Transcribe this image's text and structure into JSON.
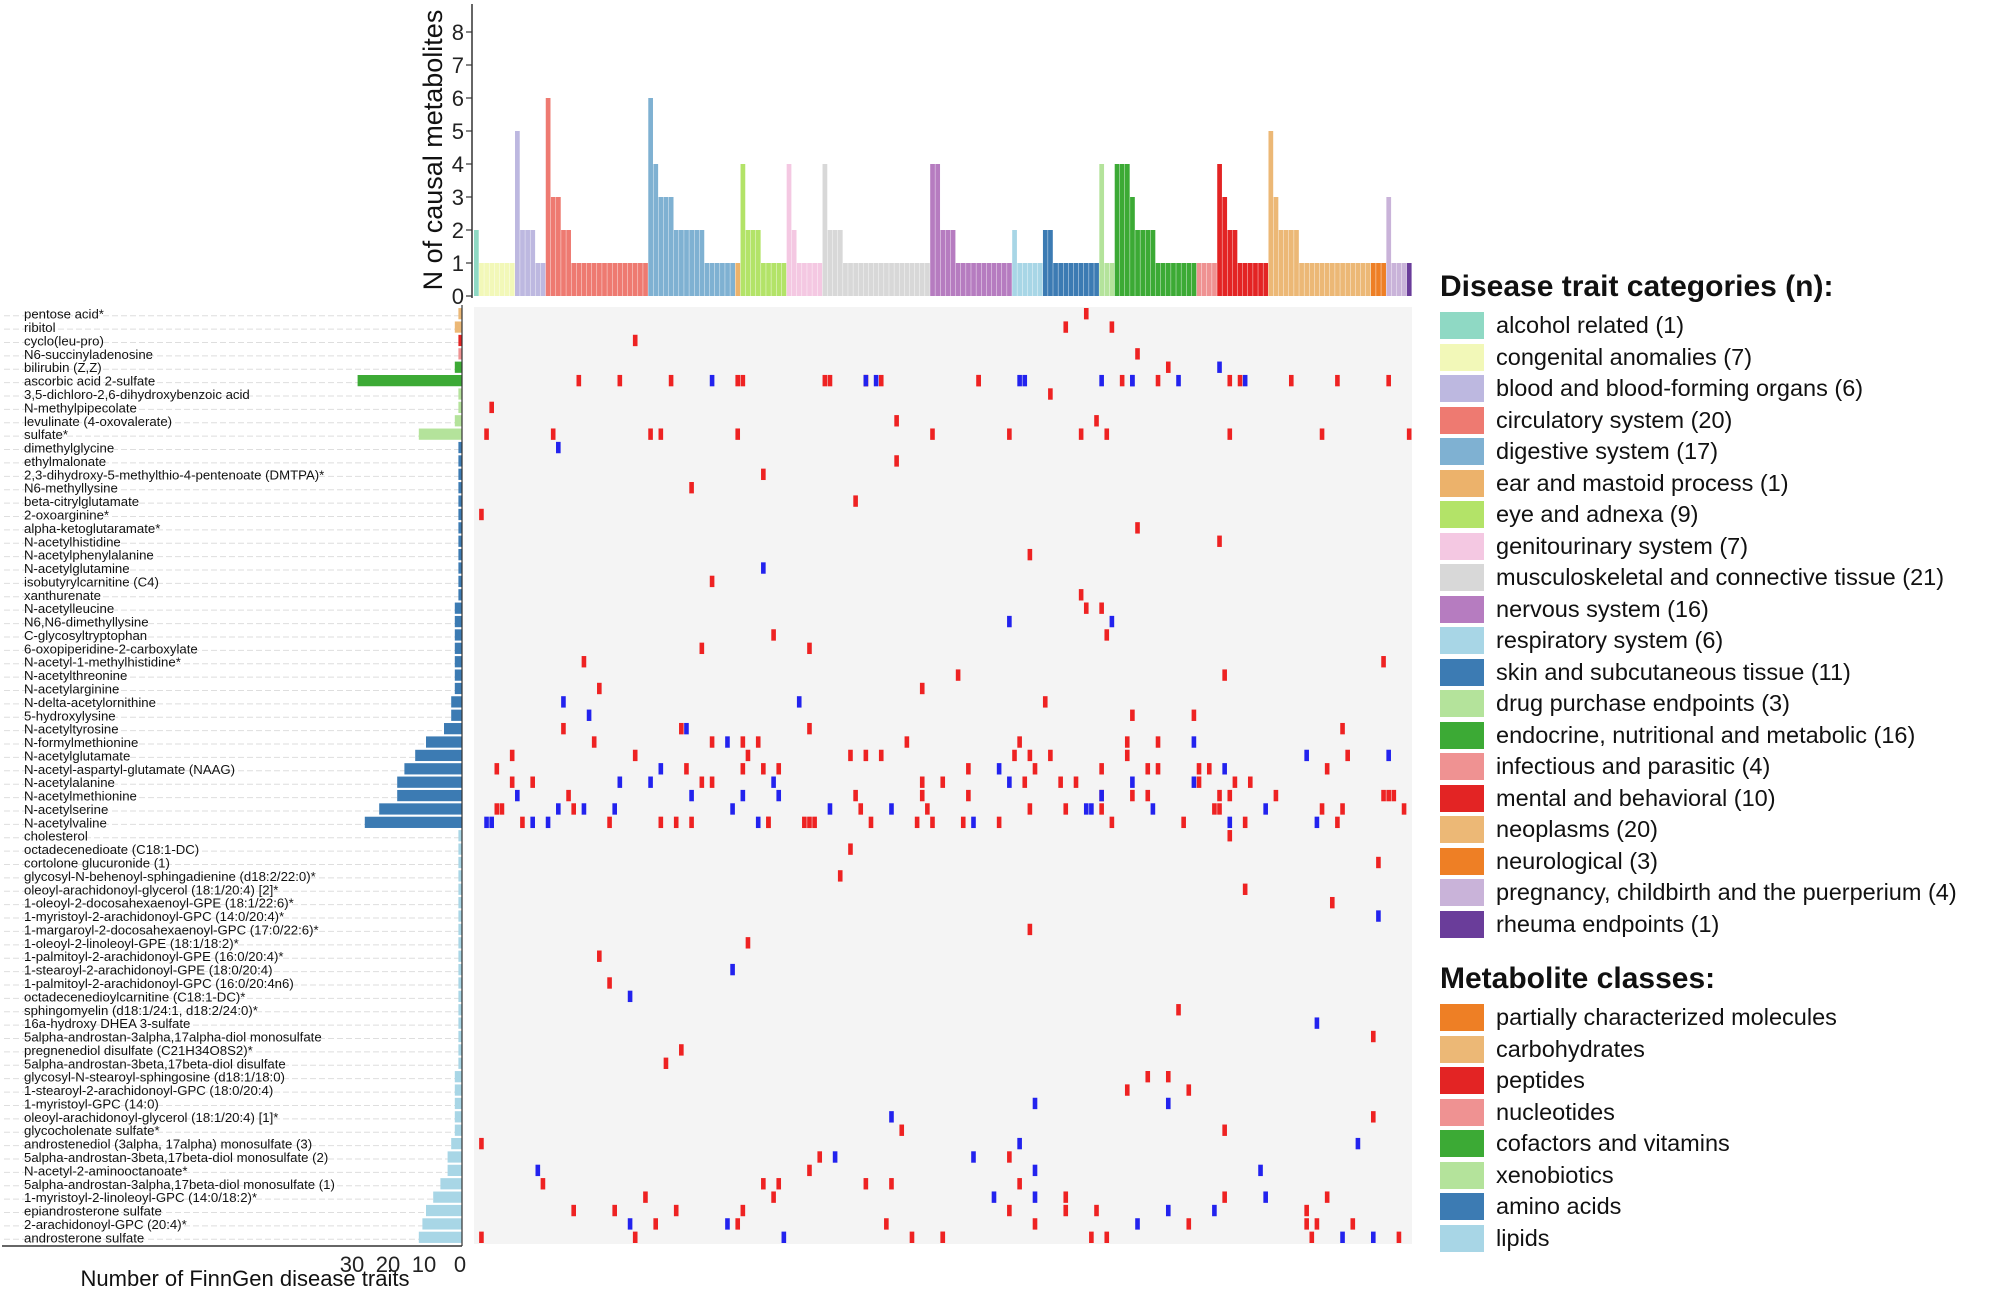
{
  "chart_data": [
    {
      "type": "bar",
      "title": "",
      "ylabel": "N of causal metabolites",
      "ylim": [
        0,
        8
      ],
      "yticks": [
        0,
        1,
        2,
        3,
        4,
        5,
        6,
        7,
        8
      ],
      "note": "one bar per FinnGen disease trait, coloured by disease trait category",
      "categories_by_group": [
        {
          "category": "alcohol related",
          "values": [
            2
          ]
        },
        {
          "category": "congenital anomalies",
          "values": [
            1,
            1,
            1,
            1,
            1,
            1,
            1
          ]
        },
        {
          "category": "blood and blood-forming organs",
          "values": [
            5,
            2,
            2,
            2,
            1,
            1
          ]
        },
        {
          "category": "circulatory system",
          "values": [
            6,
            3,
            3,
            2,
            2,
            1,
            1,
            1,
            1,
            1,
            1,
            1,
            1,
            1,
            1,
            1,
            1,
            1,
            1,
            1
          ]
        },
        {
          "category": "digestive system",
          "values": [
            6,
            4,
            3,
            3,
            3,
            2,
            2,
            2,
            2,
            2,
            2,
            1,
            1,
            1,
            1,
            1,
            1
          ]
        },
        {
          "category": "ear and mastoid process",
          "values": [
            1
          ]
        },
        {
          "category": "eye and adnexa",
          "values": [
            4,
            2,
            2,
            2,
            1,
            1,
            1,
            1,
            1
          ]
        },
        {
          "category": "genitourinary system",
          "values": [
            4,
            2,
            1,
            1,
            1,
            1,
            1
          ]
        },
        {
          "category": "musculoskeletal and connective tissue",
          "values": [
            4,
            2,
            2,
            2,
            1,
            1,
            1,
            1,
            1,
            1,
            1,
            1,
            1,
            1,
            1,
            1,
            1,
            1,
            1,
            1,
            1
          ]
        },
        {
          "category": "nervous system",
          "values": [
            4,
            4,
            2,
            2,
            2,
            1,
            1,
            1,
            1,
            1,
            1,
            1,
            1,
            1,
            1,
            1
          ]
        },
        {
          "category": "respiratory system",
          "values": [
            2,
            1,
            1,
            1,
            1,
            1
          ]
        },
        {
          "category": "skin and subcutaneous tissue",
          "values": [
            2,
            2,
            1,
            1,
            1,
            1,
            1,
            1,
            1,
            1,
            1
          ]
        },
        {
          "category": "drug purchase endpoints",
          "values": [
            4,
            1,
            1
          ]
        },
        {
          "category": "endocrine, nutritional and metabolic",
          "values": [
            4,
            4,
            4,
            3,
            2,
            2,
            2,
            2,
            1,
            1,
            1,
            1,
            1,
            1,
            1,
            1
          ]
        },
        {
          "category": "infectious and parasitic",
          "values": [
            1,
            1,
            1,
            1
          ]
        },
        {
          "category": "mental and behavioral",
          "values": [
            4,
            3,
            2,
            2,
            1,
            1,
            1,
            1,
            1,
            1
          ]
        },
        {
          "category": "neoplasms",
          "values": [
            5,
            3,
            2,
            2,
            2,
            2,
            1,
            1,
            1,
            1,
            1,
            1,
            1,
            1,
            1,
            1,
            1,
            1,
            1,
            1
          ]
        },
        {
          "category": "neurological",
          "values": [
            1,
            1,
            1
          ]
        },
        {
          "category": "pregnancy, childbirth and the puerperium",
          "values": [
            3,
            1,
            1,
            1
          ]
        },
        {
          "category": "rheuma endpoints",
          "values": [
            1
          ]
        }
      ]
    },
    {
      "type": "bar",
      "orientation": "horizontal",
      "xlabel": "Number of FinnGen disease traits",
      "xticks": [
        30,
        20,
        10,
        0
      ],
      "xlim": [
        0,
        33
      ],
      "metabolites": [
        {
          "name": "pentose acid*",
          "value": 1,
          "class": "carbohydrates"
        },
        {
          "name": "ribitol",
          "value": 2,
          "class": "carbohydrates"
        },
        {
          "name": "cyclo(leu-pro)",
          "value": 1,
          "class": "peptides"
        },
        {
          "name": "N6-succinyladenosine",
          "value": 1,
          "class": "nucleotides"
        },
        {
          "name": "bilirubin (Z,Z)",
          "value": 2,
          "class": "cofactors and vitamins"
        },
        {
          "name": "ascorbic acid 2-sulfate",
          "value": 29,
          "class": "cofactors and vitamins"
        },
        {
          "name": "3,5-dichloro-2,6-dihydroxybenzoic acid",
          "value": 1,
          "class": "xenobiotics"
        },
        {
          "name": "N-methylpipecolate",
          "value": 1,
          "class": "xenobiotics"
        },
        {
          "name": "levulinate (4-oxovalerate)",
          "value": 2,
          "class": "xenobiotics"
        },
        {
          "name": "sulfate*",
          "value": 12,
          "class": "xenobiotics"
        },
        {
          "name": "dimethylglycine",
          "value": 1,
          "class": "amino acids"
        },
        {
          "name": "ethylmalonate",
          "value": 1,
          "class": "amino acids"
        },
        {
          "name": "2,3-dihydroxy-5-methylthio-4-pentenoate (DMTPA)*",
          "value": 1,
          "class": "amino acids"
        },
        {
          "name": "N6-methyllysine",
          "value": 1,
          "class": "amino acids"
        },
        {
          "name": "beta-citrylglutamate",
          "value": 1,
          "class": "amino acids"
        },
        {
          "name": "2-oxoarginine*",
          "value": 1,
          "class": "amino acids"
        },
        {
          "name": "alpha-ketoglutaramate*",
          "value": 1,
          "class": "amino acids"
        },
        {
          "name": "N-acetylhistidine",
          "value": 1,
          "class": "amino acids"
        },
        {
          "name": "N-acetylphenylalanine",
          "value": 1,
          "class": "amino acids"
        },
        {
          "name": "N-acetylglutamine",
          "value": 1,
          "class": "amino acids"
        },
        {
          "name": "isobutyrylcarnitine (C4)",
          "value": 1,
          "class": "amino acids"
        },
        {
          "name": "xanthurenate",
          "value": 1,
          "class": "amino acids"
        },
        {
          "name": "N-acetylleucine",
          "value": 2,
          "class": "amino acids"
        },
        {
          "name": "N6,N6-dimethyllysine",
          "value": 2,
          "class": "amino acids"
        },
        {
          "name": "C-glycosyltryptophan",
          "value": 2,
          "class": "amino acids"
        },
        {
          "name": "6-oxopiperidine-2-carboxylate",
          "value": 2,
          "class": "amino acids"
        },
        {
          "name": "N-acetyl-1-methylhistidine*",
          "value": 2,
          "class": "amino acids"
        },
        {
          "name": "N-acetylthreonine",
          "value": 2,
          "class": "amino acids"
        },
        {
          "name": "N-acetylarginine",
          "value": 2,
          "class": "amino acids"
        },
        {
          "name": "N-delta-acetylornithine",
          "value": 3,
          "class": "amino acids"
        },
        {
          "name": "5-hydroxylysine",
          "value": 3,
          "class": "amino acids"
        },
        {
          "name": "N-acetyltyrosine",
          "value": 5,
          "class": "amino acids"
        },
        {
          "name": "N-formylmethionine",
          "value": 10,
          "class": "amino acids"
        },
        {
          "name": "N-acetylglutamate",
          "value": 13,
          "class": "amino acids"
        },
        {
          "name": "N-acetyl-aspartyl-glutamate (NAAG)",
          "value": 16,
          "class": "amino acids"
        },
        {
          "name": "N-acetylalanine",
          "value": 18,
          "class": "amino acids"
        },
        {
          "name": "N-acetylmethionine",
          "value": 18,
          "class": "amino acids"
        },
        {
          "name": "N-acetylserine",
          "value": 23,
          "class": "amino acids"
        },
        {
          "name": "N-acetylvaline",
          "value": 27,
          "class": "amino acids"
        },
        {
          "name": "cholesterol",
          "value": 1,
          "class": "lipids"
        },
        {
          "name": "octadecenedioate (C18:1-DC)",
          "value": 1,
          "class": "lipids"
        },
        {
          "name": "cortolone glucuronide (1)",
          "value": 1,
          "class": "lipids"
        },
        {
          "name": "glycosyl-N-behenoyl-sphingadienine (d18:2/22:0)*",
          "value": 1,
          "class": "lipids"
        },
        {
          "name": "oleoyl-arachidonoyl-glycerol (18:1/20:4) [2]*",
          "value": 1,
          "class": "lipids"
        },
        {
          "name": "1-oleoyl-2-docosahexaenoyl-GPE (18:1/22:6)*",
          "value": 1,
          "class": "lipids"
        },
        {
          "name": "1-myristoyl-2-arachidonoyl-GPC (14:0/20:4)*",
          "value": 1,
          "class": "lipids"
        },
        {
          "name": "1-margaroyl-2-docosahexaenoyl-GPC (17:0/22:6)*",
          "value": 1,
          "class": "lipids"
        },
        {
          "name": "1-oleoyl-2-linoleoyl-GPE (18:1/18:2)*",
          "value": 1,
          "class": "lipids"
        },
        {
          "name": "1-palmitoyl-2-arachidonoyl-GPE (16:0/20:4)*",
          "value": 1,
          "class": "lipids"
        },
        {
          "name": "1-stearoyl-2-arachidonoyl-GPE (18:0/20:4)",
          "value": 1,
          "class": "lipids"
        },
        {
          "name": "1-palmitoyl-2-arachidonoyl-GPC (16:0/20:4n6)",
          "value": 1,
          "class": "lipids"
        },
        {
          "name": "octadecenedioylcarnitine (C18:1-DC)*",
          "value": 1,
          "class": "lipids"
        },
        {
          "name": "sphingomyelin (d18:1/24:1, d18:2/24:0)*",
          "value": 1,
          "class": "lipids"
        },
        {
          "name": "16a-hydroxy DHEA 3-sulfate",
          "value": 1,
          "class": "lipids"
        },
        {
          "name": "5alpha-androstan-3alpha,17alpha-diol monosulfate",
          "value": 1,
          "class": "lipids"
        },
        {
          "name": "pregnenediol disulfate (C21H34O8S2)*",
          "value": 1,
          "class": "lipids"
        },
        {
          "name": "5alpha-androstan-3beta,17beta-diol disulfate",
          "value": 1,
          "class": "lipids"
        },
        {
          "name": "glycosyl-N-stearoyl-sphingosine (d18:1/18:0)",
          "value": 2,
          "class": "lipids"
        },
        {
          "name": "1-stearoyl-2-arachidonoyl-GPC (18:0/20:4)",
          "value": 2,
          "class": "lipids"
        },
        {
          "name": "1-myristoyl-GPC (14:0)",
          "value": 2,
          "class": "lipids"
        },
        {
          "name": "oleoyl-arachidonoyl-glycerol (18:1/20:4) [1]*",
          "value": 2,
          "class": "lipids"
        },
        {
          "name": "glycocholenate sulfate*",
          "value": 2,
          "class": "lipids"
        },
        {
          "name": "androstenediol (3alpha, 17alpha) monosulfate (3)",
          "value": 3,
          "class": "lipids"
        },
        {
          "name": "5alpha-androstan-3beta,17beta-diol monosulfate (2)",
          "value": 4,
          "class": "lipids"
        },
        {
          "name": "N-acetyl-2-aminooctanoate*",
          "value": 4,
          "class": "lipids"
        },
        {
          "name": "5alpha-androstan-3alpha,17beta-diol monosulfate (1)",
          "value": 6,
          "class": "lipids"
        },
        {
          "name": "1-myristoyl-2-linoleoyl-GPC (14:0/18:2)*",
          "value": 8,
          "class": "lipids"
        },
        {
          "name": "epiandrosterone sulfate",
          "value": 10,
          "class": "lipids"
        },
        {
          "name": "2-arachidonoyl-GPC (20:4)*",
          "value": 11,
          "class": "lipids"
        },
        {
          "name": "androsterone sulfate",
          "value": 12,
          "class": "lipids"
        }
      ]
    },
    {
      "type": "heatmap",
      "note": "metabolite (rows) x disease trait (columns); red = positive causal effect, blue = negative causal effect",
      "cell_colors": {
        "positive": "#ee2222",
        "negative": "#2222ee",
        "background": "#f4f4f4"
      }
    }
  ],
  "legend_traits": {
    "title": "Disease trait categories (n):",
    "items": [
      {
        "label": "alcohol related (1)",
        "color": "#8fd9c4"
      },
      {
        "label": "congenital anomalies (7)",
        "color": "#f2f8b8"
      },
      {
        "label": "blood and blood-forming organs (6)",
        "color": "#bdb8e0"
      },
      {
        "label": "circulatory system (20)",
        "color": "#ee7a71"
      },
      {
        "label": "digestive system (17)",
        "color": "#7fb1d2"
      },
      {
        "label": "ear and mastoid process (1)",
        "color": "#ecb26b"
      },
      {
        "label": "eye and adnexa (9)",
        "color": "#b3e368"
      },
      {
        "label": "genitourinary system (7)",
        "color": "#f4c8e2"
      },
      {
        "label": "musculoskeletal and connective tissue (21)",
        "color": "#d8d8d8"
      },
      {
        "label": "nervous system (16)",
        "color": "#b67cc0"
      },
      {
        "label": "respiratory system (6)",
        "color": "#a8d6e6"
      },
      {
        "label": "skin and subcutaneous tissue (11)",
        "color": "#3c7bb3"
      },
      {
        "label": "drug purchase endpoints (3)",
        "color": "#b4e39b"
      },
      {
        "label": "endocrine, nutritional and metabolic (16)",
        "color": "#3caa35"
      },
      {
        "label": "infectious and parasitic (4)",
        "color": "#ef9292"
      },
      {
        "label": "mental and behavioral (10)",
        "color": "#e32424"
      },
      {
        "label": "neoplasms (20)",
        "color": "#ecb876"
      },
      {
        "label": "neurological (3)",
        "color": "#ee7f25"
      },
      {
        "label": "pregnancy, childbirth and the puerperium (4)",
        "color": "#c9b3d9"
      },
      {
        "label": "rheuma endpoints (1)",
        "color": "#6a3d9a"
      }
    ]
  },
  "legend_classes": {
    "title": "Metabolite classes:",
    "items": [
      {
        "label": "partially characterized molecules",
        "color": "#ee7f25"
      },
      {
        "label": "carbohydrates",
        "color": "#ecb876"
      },
      {
        "label": "peptides",
        "color": "#e32424"
      },
      {
        "label": "nucleotides",
        "color": "#ef9292"
      },
      {
        "label": "cofactors and vitamins",
        "color": "#3caa35"
      },
      {
        "label": "xenobiotics",
        "color": "#b4e39b"
      },
      {
        "label": "amino acids",
        "color": "#3c7bb3"
      },
      {
        "label": "lipids",
        "color": "#a8d6e6"
      }
    ]
  }
}
